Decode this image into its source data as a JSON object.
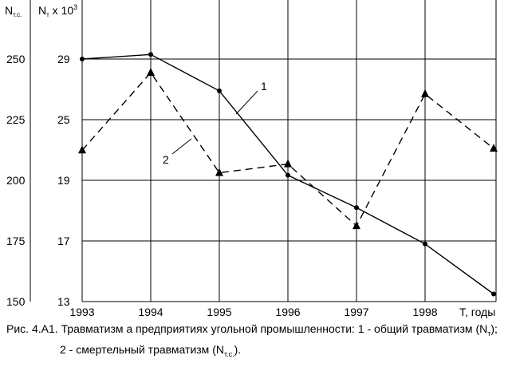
{
  "chart_data": {
    "type": "line",
    "left_axis": {
      "label_main": "N",
      "label_sub": "т.с.",
      "ticks": [
        "250",
        "225",
        "200",
        "175",
        "150"
      ]
    },
    "right_axis": {
      "label_main": "N",
      "label_sub": "т",
      "label_rest": " x 10",
      "label_sup": "3",
      "ticks": [
        "29",
        "25",
        "19",
        "17",
        "13"
      ]
    },
    "x_axis": {
      "categories": [
        "1993",
        "1994",
        "1995",
        "1996",
        "1997",
        "1998"
      ],
      "label": "T, годы"
    },
    "grid": true,
    "series": [
      {
        "name": "1",
        "style": "solid",
        "marker": "circle",
        "axis": "right",
        "x": [
          "1993",
          "1994",
          "1995",
          "1996",
          "1997",
          "1998",
          "1999"
        ],
        "y": [
          29.0,
          29.3,
          26.9,
          19.5,
          18.1,
          16.8,
          13.5
        ]
      },
      {
        "name": "2",
        "style": "dashed",
        "marker": "triangle",
        "axis": "left",
        "x": [
          "1993",
          "1994",
          "1995",
          "1996",
          "1997",
          "1998",
          "1999"
        ],
        "y": [
          212.4,
          244.4,
          203.1,
          206.7,
          181.2,
          235.6,
          213.1
        ]
      }
    ],
    "series_labels": [
      "1",
      "2"
    ]
  },
  "caption": {
    "line1": "Рис. 4.А1. Травматизм а предприятиях угольной промышленности: 1 - общий травматизм (N",
    "line1_sub": "т",
    "line1_end": ");",
    "line2": "2 - смертельный травматизм (N",
    "line2_sub": "т.с.",
    "line2_end": ")."
  },
  "colors": {
    "ink": "#000000",
    "background": "#ffffff"
  }
}
